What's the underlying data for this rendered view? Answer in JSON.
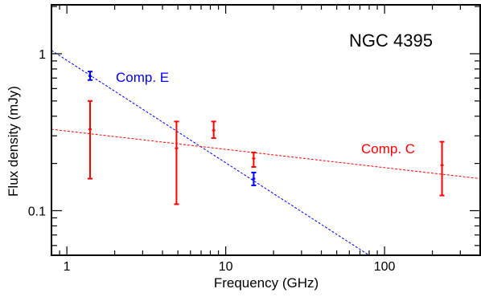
{
  "chart_data": {
    "type": "scatter",
    "title": "NGC 4395",
    "xlabel": "Frequency (GHz)",
    "ylabel": "Flux density (mJy)",
    "x_scale": "log",
    "y_scale": "log",
    "xlim": [
      0.8,
      400
    ],
    "ylim": [
      0.052,
      2.05
    ],
    "x_ticks": [
      {
        "value": 1,
        "label": "1"
      },
      {
        "value": 10,
        "label": "10"
      },
      {
        "value": 100,
        "label": "100"
      }
    ],
    "y_ticks": [
      {
        "value": 0.1,
        "label": "0.1"
      },
      {
        "value": 1,
        "label": "1"
      }
    ],
    "grid": false,
    "series": [
      {
        "name": "Comp. E",
        "color": "#0000ff",
        "points": [
          {
            "x": 1.4,
            "y": 0.72,
            "y_low": 0.68,
            "y_high": 0.77
          },
          {
            "x": 15,
            "y": 0.16,
            "y_low": 0.145,
            "y_high": 0.175
          }
        ],
        "fit": {
          "x": [
            0.8,
            80
          ],
          "y": [
            1.05,
            0.052
          ]
        }
      },
      {
        "name": "Comp. C",
        "color": "#ff0000",
        "points": [
          {
            "x": 1.4,
            "y": 0.33,
            "y_low": 0.16,
            "y_high": 0.5
          },
          {
            "x": 4.9,
            "y": 0.25,
            "y_low": 0.11,
            "y_high": 0.37
          },
          {
            "x": 8.4,
            "y": 0.325,
            "y_low": 0.29,
            "y_high": 0.37
          },
          {
            "x": 15,
            "y": 0.215,
            "y_low": 0.19,
            "y_high": 0.235
          },
          {
            "x": 230,
            "y": 0.195,
            "y_low": 0.125,
            "y_high": 0.275
          }
        ],
        "fit": {
          "x": [
            0.8,
            400
          ],
          "y": [
            0.33,
            0.16
          ]
        }
      }
    ]
  }
}
